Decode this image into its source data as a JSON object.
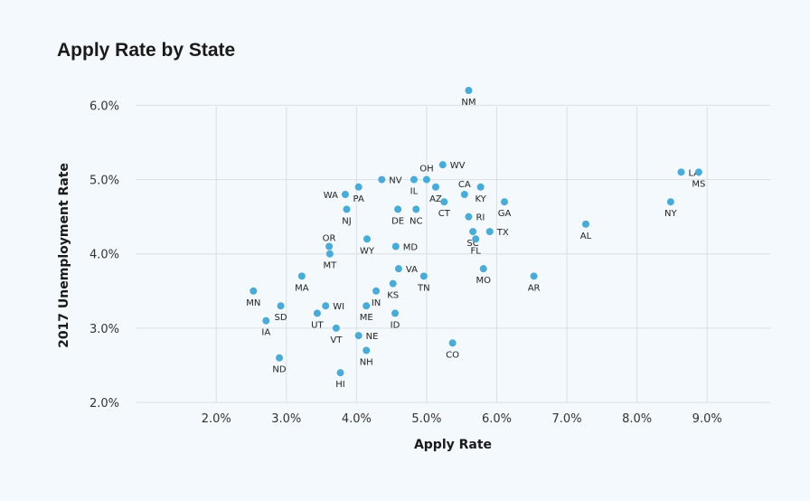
{
  "page": {
    "title": "Apply Rate by State"
  },
  "colors": {
    "point": "#4aabd9",
    "grid": "#d8e0e5",
    "background": "#f3f9fc"
  },
  "chart_data": {
    "type": "scatter",
    "title": "Apply Rate by State",
    "xlabel": "Apply Rate",
    "ylabel": "2017 Unemployment Rate",
    "xlim": [
      0.85,
      9.9
    ],
    "ylim": [
      2.0,
      6.2
    ],
    "x_ticks": [
      2.0,
      3.0,
      4.0,
      5.0,
      6.0,
      7.0,
      8.0,
      9.0
    ],
    "x_tick_labels": [
      "2.0%",
      "3.0%",
      "4.0%",
      "5.0%",
      "6.0%",
      "7.0%",
      "8.0%",
      "9.0%"
    ],
    "y_ticks": [
      2.0,
      3.0,
      4.0,
      5.0,
      6.0
    ],
    "y_tick_labels": [
      "2.0%",
      "3.0%",
      "4.0%",
      "5.0%",
      "6.0%"
    ],
    "grid": true,
    "points": [
      {
        "label": "NM",
        "x": 5.6,
        "y": 6.2
      },
      {
        "label": "WV",
        "x": 5.23,
        "y": 5.2
      },
      {
        "label": "OH",
        "x": 5.0,
        "y": 5.0
      },
      {
        "label": "IL",
        "x": 4.82,
        "y": 5.0
      },
      {
        "label": "NV",
        "x": 4.36,
        "y": 5.0
      },
      {
        "label": "AZ",
        "x": 5.13,
        "y": 4.9
      },
      {
        "label": "CA",
        "x": 5.54,
        "y": 4.8
      },
      {
        "label": "KY",
        "x": 5.77,
        "y": 4.9
      },
      {
        "label": "WA",
        "x": 3.84,
        "y": 4.8
      },
      {
        "label": "PA",
        "x": 4.03,
        "y": 4.9
      },
      {
        "label": "CT",
        "x": 5.25,
        "y": 4.7
      },
      {
        "label": "GA",
        "x": 6.11,
        "y": 4.7
      },
      {
        "label": "NJ",
        "x": 3.86,
        "y": 4.6
      },
      {
        "label": "DE",
        "x": 4.59,
        "y": 4.6
      },
      {
        "label": "NC",
        "x": 4.85,
        "y": 4.6
      },
      {
        "label": "RI",
        "x": 5.6,
        "y": 4.5
      },
      {
        "label": "SC",
        "x": 5.66,
        "y": 4.3
      },
      {
        "label": "TX",
        "x": 5.9,
        "y": 4.3
      },
      {
        "label": "FL",
        "x": 5.7,
        "y": 4.2
      },
      {
        "label": "AL",
        "x": 7.27,
        "y": 4.4
      },
      {
        "label": "LA",
        "x": 8.63,
        "y": 5.1
      },
      {
        "label": "MS",
        "x": 8.88,
        "y": 5.1
      },
      {
        "label": "NY",
        "x": 8.48,
        "y": 4.7
      },
      {
        "label": "OR",
        "x": 3.61,
        "y": 4.1
      },
      {
        "label": "WY",
        "x": 4.15,
        "y": 4.2
      },
      {
        "label": "MD",
        "x": 4.56,
        "y": 4.1
      },
      {
        "label": "MT",
        "x": 3.62,
        "y": 4.0
      },
      {
        "label": "VA",
        "x": 4.6,
        "y": 3.8
      },
      {
        "label": "MA",
        "x": 3.22,
        "y": 3.7
      },
      {
        "label": "TN",
        "x": 4.96,
        "y": 3.7
      },
      {
        "label": "MO",
        "x": 5.81,
        "y": 3.8
      },
      {
        "label": "AR",
        "x": 6.53,
        "y": 3.7
      },
      {
        "label": "KS",
        "x": 4.52,
        "y": 3.6
      },
      {
        "label": "IN",
        "x": 4.28,
        "y": 3.5
      },
      {
        "label": "MN",
        "x": 2.53,
        "y": 3.5
      },
      {
        "label": "SD",
        "x": 2.92,
        "y": 3.3
      },
      {
        "label": "WI",
        "x": 3.56,
        "y": 3.3
      },
      {
        "label": "ME",
        "x": 4.14,
        "y": 3.3
      },
      {
        "label": "UT",
        "x": 3.44,
        "y": 3.2
      },
      {
        "label": "ID",
        "x": 4.55,
        "y": 3.2
      },
      {
        "label": "IA",
        "x": 2.71,
        "y": 3.1
      },
      {
        "label": "VT",
        "x": 3.71,
        "y": 3.0
      },
      {
        "label": "NE",
        "x": 4.03,
        "y": 2.9
      },
      {
        "label": "CO",
        "x": 5.37,
        "y": 2.8
      },
      {
        "label": "NH",
        "x": 4.14,
        "y": 2.7
      },
      {
        "label": "ND",
        "x": 2.9,
        "y": 2.6
      },
      {
        "label": "HI",
        "x": 3.77,
        "y": 2.4
      }
    ]
  }
}
